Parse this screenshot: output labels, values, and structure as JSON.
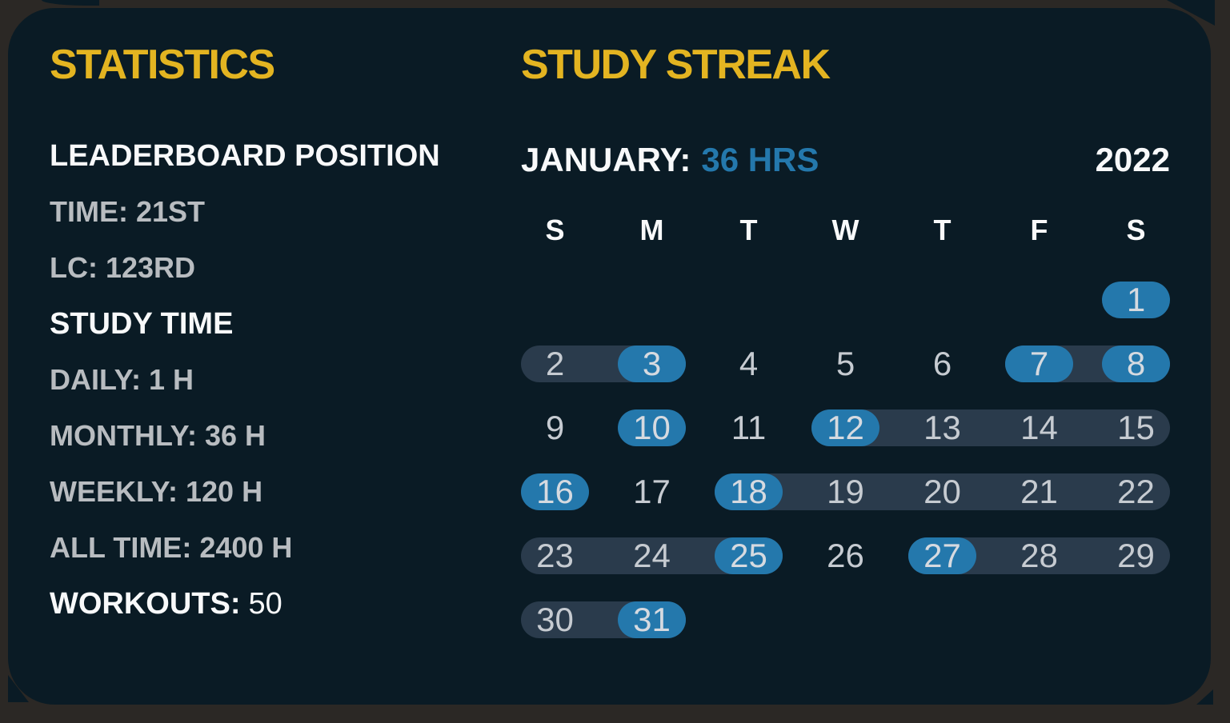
{
  "colors": {
    "frame": "#2B2825",
    "card_bg": "#0A1B25",
    "accent_yellow": "#E3B421",
    "accent_blue": "#2478AC",
    "pill_slate": "#2A3B4C",
    "text_white": "#F8F9FA",
    "text_gray": "#B8BCC0",
    "day_number_gray": "#C6CBD1",
    "active_day_text": "#D6DAE0"
  },
  "statistics": {
    "title": "STATISTICS",
    "rows": [
      {
        "style": "heading",
        "text": "LEADERBOARD POSITION"
      },
      {
        "style": "item",
        "label": "TIME:",
        "value": "21ST"
      },
      {
        "style": "item",
        "label": "LC:",
        "value": "123RD"
      },
      {
        "style": "heading",
        "text": "STUDY TIME"
      },
      {
        "style": "item",
        "label": "DAILY:",
        "value": "1 H"
      },
      {
        "style": "item",
        "label": "MONTHLY:",
        "value": "36 H"
      },
      {
        "style": "item",
        "label": "WEEKLY:",
        "value": "120 H"
      },
      {
        "style": "item",
        "label": "ALL TIME:",
        "value": "2400 H"
      },
      {
        "style": "mixed",
        "label": "WORKOUTS:",
        "value": "50"
      }
    ]
  },
  "streak": {
    "title": "STUDY STREAK",
    "month_label": "JANUARY:",
    "month_hours": "36 HRS",
    "year": "2022",
    "day_headers": [
      "S",
      "M",
      "T",
      "W",
      "T",
      "F",
      "S"
    ],
    "weeks": [
      {
        "ranges": [],
        "days": [
          {
            "d": 1,
            "c": 6,
            "active": true
          }
        ]
      },
      {
        "ranges": [
          [
            0,
            1
          ],
          [
            5,
            6
          ]
        ],
        "days": [
          {
            "d": 2,
            "c": 0
          },
          {
            "d": 3,
            "c": 1,
            "active": true
          },
          {
            "d": 4,
            "c": 2
          },
          {
            "d": 5,
            "c": 3
          },
          {
            "d": 6,
            "c": 4
          },
          {
            "d": 7,
            "c": 5,
            "active": true
          },
          {
            "d": 8,
            "c": 6,
            "active": true
          }
        ]
      },
      {
        "ranges": [
          [
            3,
            6
          ]
        ],
        "days": [
          {
            "d": 9,
            "c": 0
          },
          {
            "d": 10,
            "c": 1,
            "active": true
          },
          {
            "d": 11,
            "c": 2
          },
          {
            "d": 12,
            "c": 3,
            "active": true
          },
          {
            "d": 13,
            "c": 4
          },
          {
            "d": 14,
            "c": 5
          },
          {
            "d": 15,
            "c": 6
          }
        ]
      },
      {
        "ranges": [
          [
            2,
            6
          ]
        ],
        "days": [
          {
            "d": 16,
            "c": 0,
            "active": true
          },
          {
            "d": 17,
            "c": 1
          },
          {
            "d": 18,
            "c": 2,
            "active": true
          },
          {
            "d": 19,
            "c": 3
          },
          {
            "d": 20,
            "c": 4
          },
          {
            "d": 21,
            "c": 5
          },
          {
            "d": 22,
            "c": 6
          }
        ]
      },
      {
        "ranges": [
          [
            0,
            2
          ],
          [
            4,
            6
          ]
        ],
        "days": [
          {
            "d": 23,
            "c": 0
          },
          {
            "d": 24,
            "c": 1
          },
          {
            "d": 25,
            "c": 2,
            "active": true
          },
          {
            "d": 26,
            "c": 3
          },
          {
            "d": 27,
            "c": 4,
            "active": true
          },
          {
            "d": 28,
            "c": 5
          },
          {
            "d": 29,
            "c": 6
          }
        ]
      },
      {
        "ranges": [
          [
            0,
            1
          ]
        ],
        "days": [
          {
            "d": 30,
            "c": 0
          },
          {
            "d": 31,
            "c": 1,
            "active": true
          }
        ]
      }
    ]
  }
}
